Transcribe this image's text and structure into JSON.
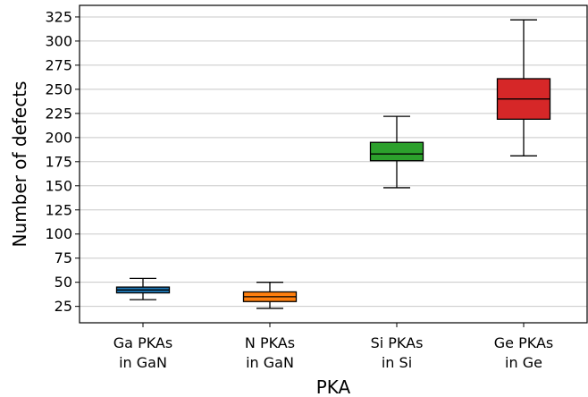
{
  "chart_data": {
    "type": "box",
    "xlabel": "PKA",
    "ylabel": "Number of defects",
    "ylim": [
      8,
      337
    ],
    "yticks": [
      25,
      50,
      75,
      100,
      125,
      150,
      175,
      200,
      225,
      250,
      275,
      300,
      325
    ],
    "grid": "horizontal",
    "categories": [
      {
        "label_lines": [
          "Ga PKAs",
          "in GaN"
        ],
        "color": "#1f77b4",
        "whisker_low": 32,
        "q1": 39,
        "median": 42,
        "q3": 45,
        "whisker_high": 54
      },
      {
        "label_lines": [
          "N PKAs",
          "in GaN"
        ],
        "color": "#ff7f0e",
        "whisker_low": 23,
        "q1": 30,
        "median": 35,
        "q3": 40,
        "whisker_high": 50
      },
      {
        "label_lines": [
          "Si PKAs",
          "in Si"
        ],
        "color": "#2ca02c",
        "whisker_low": 148,
        "q1": 176,
        "median": 183,
        "q3": 195,
        "whisker_high": 222
      },
      {
        "label_lines": [
          "Ge PKAs",
          "in Ge"
        ],
        "color": "#d62728",
        "whisker_low": 181,
        "q1": 219,
        "median": 240,
        "q3": 261,
        "whisker_high": 322
      }
    ]
  }
}
